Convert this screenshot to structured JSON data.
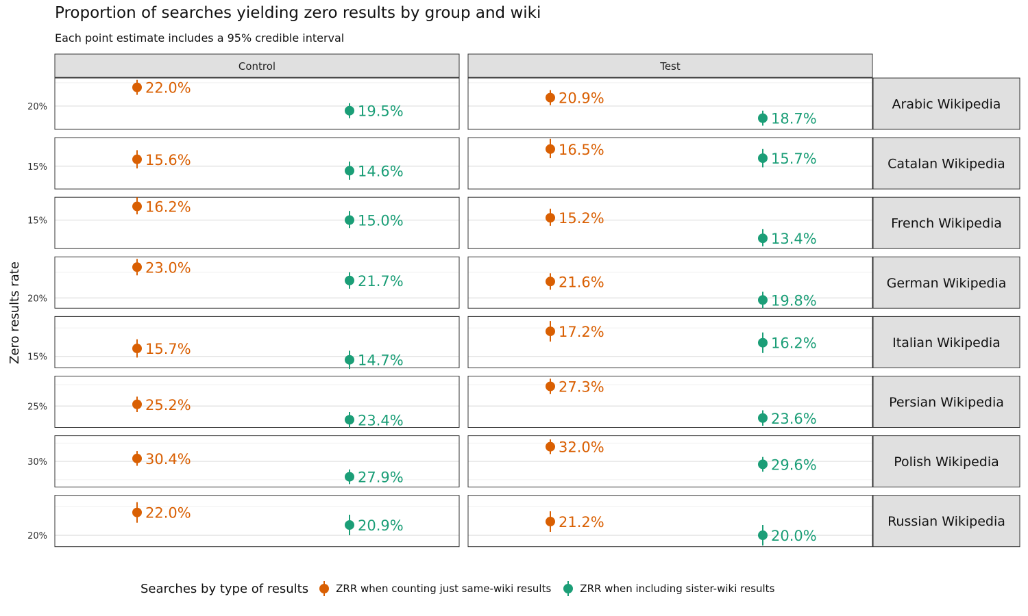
{
  "chart_data": {
    "type": "scatter",
    "title": "Proportion of searches yielding zero results by group and wiki",
    "subtitle": "Each point estimate includes a 95% credible interval",
    "ylabel": "Zero results rate",
    "columns": [
      "Control",
      "Test"
    ],
    "legend": {
      "title": "Searches by type of results",
      "position": "bottom",
      "items": [
        {
          "label": "ZRR when counting just same-wiki results",
          "color": "#d95f02"
        },
        {
          "label": "ZRR when including sister-wiki results",
          "color": "#1b9e77"
        }
      ]
    },
    "series": [
      {
        "name": "ZRR when counting just same-wiki results",
        "color": "#d95f02"
      },
      {
        "name": "ZRR when including sister-wiki results",
        "color": "#1b9e77"
      }
    ],
    "rows": [
      {
        "wiki": "Arabic Wikipedia",
        "ylim": [
          0.175,
          0.23
        ],
        "ticks": [
          {
            "v": 0.2,
            "label": "20%"
          }
        ],
        "Control": [
          {
            "value": 0.22,
            "lo": 0.212,
            "hi": 0.228,
            "label": "22.0%"
          },
          {
            "value": 0.195,
            "lo": 0.187,
            "hi": 0.203,
            "label": "19.5%"
          }
        ],
        "Test": [
          {
            "value": 0.209,
            "lo": 0.201,
            "hi": 0.217,
            "label": "20.9%"
          },
          {
            "value": 0.187,
            "lo": 0.179,
            "hi": 0.195,
            "label": "18.7%"
          }
        ]
      },
      {
        "wiki": "Catalan Wikipedia",
        "ylim": [
          0.13,
          0.175
        ],
        "ticks": [
          {
            "v": 0.15,
            "label": "15%"
          }
        ],
        "Control": [
          {
            "value": 0.156,
            "lo": 0.148,
            "hi": 0.164,
            "label": "15.6%"
          },
          {
            "value": 0.146,
            "lo": 0.138,
            "hi": 0.154,
            "label": "14.6%"
          }
        ],
        "Test": [
          {
            "value": 0.165,
            "lo": 0.157,
            "hi": 0.174,
            "label": "16.5%"
          },
          {
            "value": 0.157,
            "lo": 0.149,
            "hi": 0.165,
            "label": "15.7%"
          }
        ]
      },
      {
        "wiki": "French Wikipedia",
        "ylim": [
          0.125,
          0.17
        ],
        "ticks": [
          {
            "v": 0.15,
            "label": "15%"
          }
        ],
        "Control": [
          {
            "value": 0.162,
            "lo": 0.155,
            "hi": 0.17,
            "label": "16.2%"
          },
          {
            "value": 0.15,
            "lo": 0.143,
            "hi": 0.158,
            "label": "15.0%"
          }
        ],
        "Test": [
          {
            "value": 0.152,
            "lo": 0.145,
            "hi": 0.16,
            "label": "15.2%"
          },
          {
            "value": 0.134,
            "lo": 0.127,
            "hi": 0.142,
            "label": "13.4%"
          }
        ]
      },
      {
        "wiki": "German Wikipedia",
        "ylim": [
          0.19,
          0.24
        ],
        "ticks": [
          {
            "v": 0.2,
            "label": "20%"
          }
        ],
        "Control": [
          {
            "value": 0.23,
            "lo": 0.222,
            "hi": 0.238,
            "label": "23.0%"
          },
          {
            "value": 0.217,
            "lo": 0.209,
            "hi": 0.225,
            "label": "21.7%"
          }
        ],
        "Test": [
          {
            "value": 0.216,
            "lo": 0.208,
            "hi": 0.224,
            "label": "21.6%"
          },
          {
            "value": 0.198,
            "lo": 0.19,
            "hi": 0.206,
            "label": "19.8%"
          }
        ]
      },
      {
        "wiki": "Italian Wikipedia",
        "ylim": [
          0.14,
          0.185
        ],
        "ticks": [
          {
            "v": 0.15,
            "label": "15%"
          }
        ],
        "Control": [
          {
            "value": 0.157,
            "lo": 0.149,
            "hi": 0.165,
            "label": "15.7%"
          },
          {
            "value": 0.147,
            "lo": 0.139,
            "hi": 0.155,
            "label": "14.7%"
          }
        ],
        "Test": [
          {
            "value": 0.172,
            "lo": 0.163,
            "hi": 0.181,
            "label": "17.2%"
          },
          {
            "value": 0.162,
            "lo": 0.153,
            "hi": 0.171,
            "label": "16.2%"
          }
        ]
      },
      {
        "wiki": "Persian Wikipedia",
        "ylim": [
          0.225,
          0.285
        ],
        "ticks": [
          {
            "v": 0.25,
            "label": "25%"
          }
        ],
        "Control": [
          {
            "value": 0.252,
            "lo": 0.243,
            "hi": 0.261,
            "label": "25.2%"
          },
          {
            "value": 0.234,
            "lo": 0.225,
            "hi": 0.243,
            "label": "23.4%"
          }
        ],
        "Test": [
          {
            "value": 0.273,
            "lo": 0.264,
            "hi": 0.282,
            "label": "27.3%"
          },
          {
            "value": 0.236,
            "lo": 0.227,
            "hi": 0.245,
            "label": "23.6%"
          }
        ]
      },
      {
        "wiki": "Polish Wikipedia",
        "ylim": [
          0.265,
          0.335
        ],
        "ticks": [
          {
            "v": 0.3,
            "label": "30%"
          }
        ],
        "Control": [
          {
            "value": 0.304,
            "lo": 0.294,
            "hi": 0.314,
            "label": "30.4%"
          },
          {
            "value": 0.279,
            "lo": 0.269,
            "hi": 0.289,
            "label": "27.9%"
          }
        ],
        "Test": [
          {
            "value": 0.32,
            "lo": 0.31,
            "hi": 0.33,
            "label": "32.0%"
          },
          {
            "value": 0.296,
            "lo": 0.286,
            "hi": 0.306,
            "label": "29.6%"
          }
        ]
      },
      {
        "wiki": "Russian Wikipedia",
        "ylim": [
          0.19,
          0.235
        ],
        "ticks": [
          {
            "v": 0.2,
            "label": "20%"
          }
        ],
        "Control": [
          {
            "value": 0.22,
            "lo": 0.211,
            "hi": 0.229,
            "label": "22.0%"
          },
          {
            "value": 0.209,
            "lo": 0.2,
            "hi": 0.218,
            "label": "20.9%"
          }
        ],
        "Test": [
          {
            "value": 0.212,
            "lo": 0.203,
            "hi": 0.221,
            "label": "21.2%"
          },
          {
            "value": 0.2,
            "lo": 0.191,
            "hi": 0.209,
            "label": "20.0%"
          }
        ]
      }
    ]
  }
}
